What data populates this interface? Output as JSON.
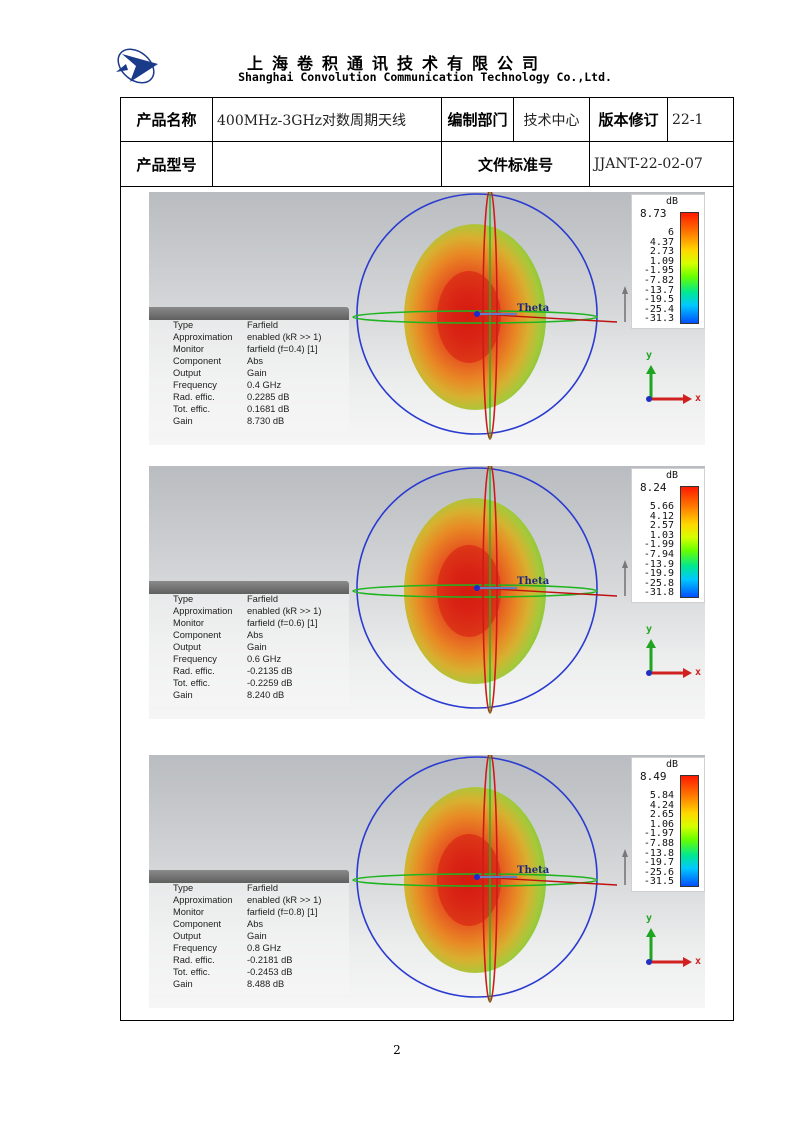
{
  "header": {
    "company_cn": "上海卷积通讯技术有限公司",
    "company_en": "Shanghai Convolution Communication Technology Co.,Ltd."
  },
  "table": {
    "product_name_label": "产品名称",
    "product_name_value": "400MHz-3GHz对数周期天线",
    "dept_label": "编制部门",
    "dept_value": "技术中心",
    "revision_label": "版本修订",
    "revision_value": "22-1",
    "model_label": "产品型号",
    "model_value": "",
    "doc_no_label": "文件标准号",
    "doc_no_value": "JJANT-22-02-07"
  },
  "plots": [
    {
      "info": [
        [
          "Type",
          "Farfield"
        ],
        [
          "Approximation",
          "enabled (kR >> 1)"
        ],
        [
          "Monitor",
          "farfield (f=0.4) [1]"
        ],
        [
          "Component",
          "Abs"
        ],
        [
          "Output",
          "Gain"
        ],
        [
          "Frequency",
          "0.4 GHz"
        ],
        [
          "Rad. effic.",
          "0.2285 dB"
        ],
        [
          "Tot. effic.",
          "0.1681 dB"
        ],
        [
          "Gain",
          "8.730 dB"
        ]
      ],
      "legend_unit": "dB",
      "legend_max": "8.73",
      "legend_ticks": [
        "6",
        "4.37",
        "2.73",
        "1.09",
        "-1.95",
        "-7.82",
        "-13.7",
        "-19.5",
        "-25.4",
        "-31.3"
      ],
      "theta_label": "Theta",
      "axis_y": "y",
      "axis_x": "x"
    },
    {
      "info": [
        [
          "Type",
          "Farfield"
        ],
        [
          "Approximation",
          "enabled (kR >> 1)"
        ],
        [
          "Monitor",
          "farfield (f=0.6) [1]"
        ],
        [
          "Component",
          "Abs"
        ],
        [
          "Output",
          "Gain"
        ],
        [
          "Frequency",
          "0.6 GHz"
        ],
        [
          "Rad. effic.",
          "-0.2135 dB"
        ],
        [
          "Tot. effic.",
          "-0.2259 dB"
        ],
        [
          "Gain",
          "8.240 dB"
        ]
      ],
      "legend_unit": "dB",
      "legend_max": "8.24",
      "legend_ticks": [
        "5.66",
        "4.12",
        "2.57",
        "1.03",
        "-1.99",
        "-7.94",
        "-13.9",
        "-19.9",
        "-25.8",
        "-31.8"
      ],
      "theta_label": "Theta",
      "axis_y": "y",
      "axis_x": "x"
    },
    {
      "info": [
        [
          "Type",
          "Farfield"
        ],
        [
          "Approximation",
          "enabled (kR >> 1)"
        ],
        [
          "Monitor",
          "farfield (f=0.8) [1]"
        ],
        [
          "Component",
          "Abs"
        ],
        [
          "Output",
          "Gain"
        ],
        [
          "Frequency",
          "0.8 GHz"
        ],
        [
          "Rad. effic.",
          "-0.2181 dB"
        ],
        [
          "Tot. effic.",
          "-0.2453 dB"
        ],
        [
          "Gain",
          "8.488 dB"
        ]
      ],
      "legend_unit": "dB",
      "legend_max": "8.49",
      "legend_ticks": [
        "5.84",
        "4.24",
        "2.65",
        "1.06",
        "-1.97",
        "-7.88",
        "-13.8",
        "-19.7",
        "-25.6",
        "-31.5"
      ],
      "theta_label": "Theta",
      "axis_y": "y",
      "axis_x": "x"
    }
  ],
  "page_number": "2"
}
